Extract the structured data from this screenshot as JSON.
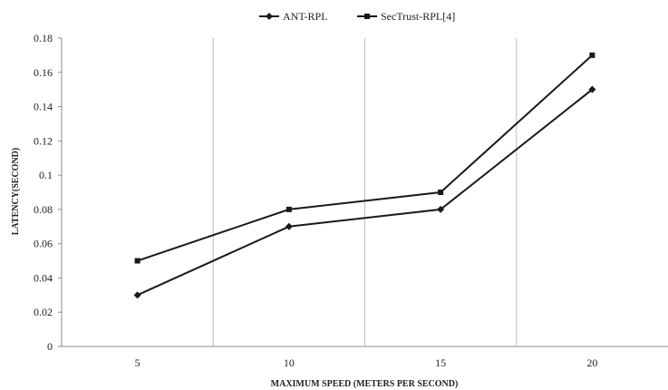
{
  "chart_data": {
    "type": "line",
    "title": "",
    "xlabel": "MAXIMUM SPEED (METERS PER SECOND)",
    "ylabel": "LATENCY(SECOND)",
    "categories": [
      "5",
      "10",
      "15",
      "20"
    ],
    "y_ticks": [
      "0",
      "0.02",
      "0.04",
      "0.06",
      "0.08",
      "0.1",
      "0.12",
      "0.14",
      "0.16",
      "0.18"
    ],
    "ylim": [
      0,
      0.18
    ],
    "grid": "vertical separators between categories",
    "legend_position": "top-center",
    "series": [
      {
        "name": "ANT-RPL",
        "values": [
          0.03,
          0.07,
          0.08,
          0.15
        ],
        "marker": "diamond",
        "color": "#1a1a1a"
      },
      {
        "name": "SecTrust-RPL[4]",
        "values": [
          0.05,
          0.08,
          0.09,
          0.17
        ],
        "marker": "square",
        "color": "#1a1a1a"
      }
    ]
  }
}
